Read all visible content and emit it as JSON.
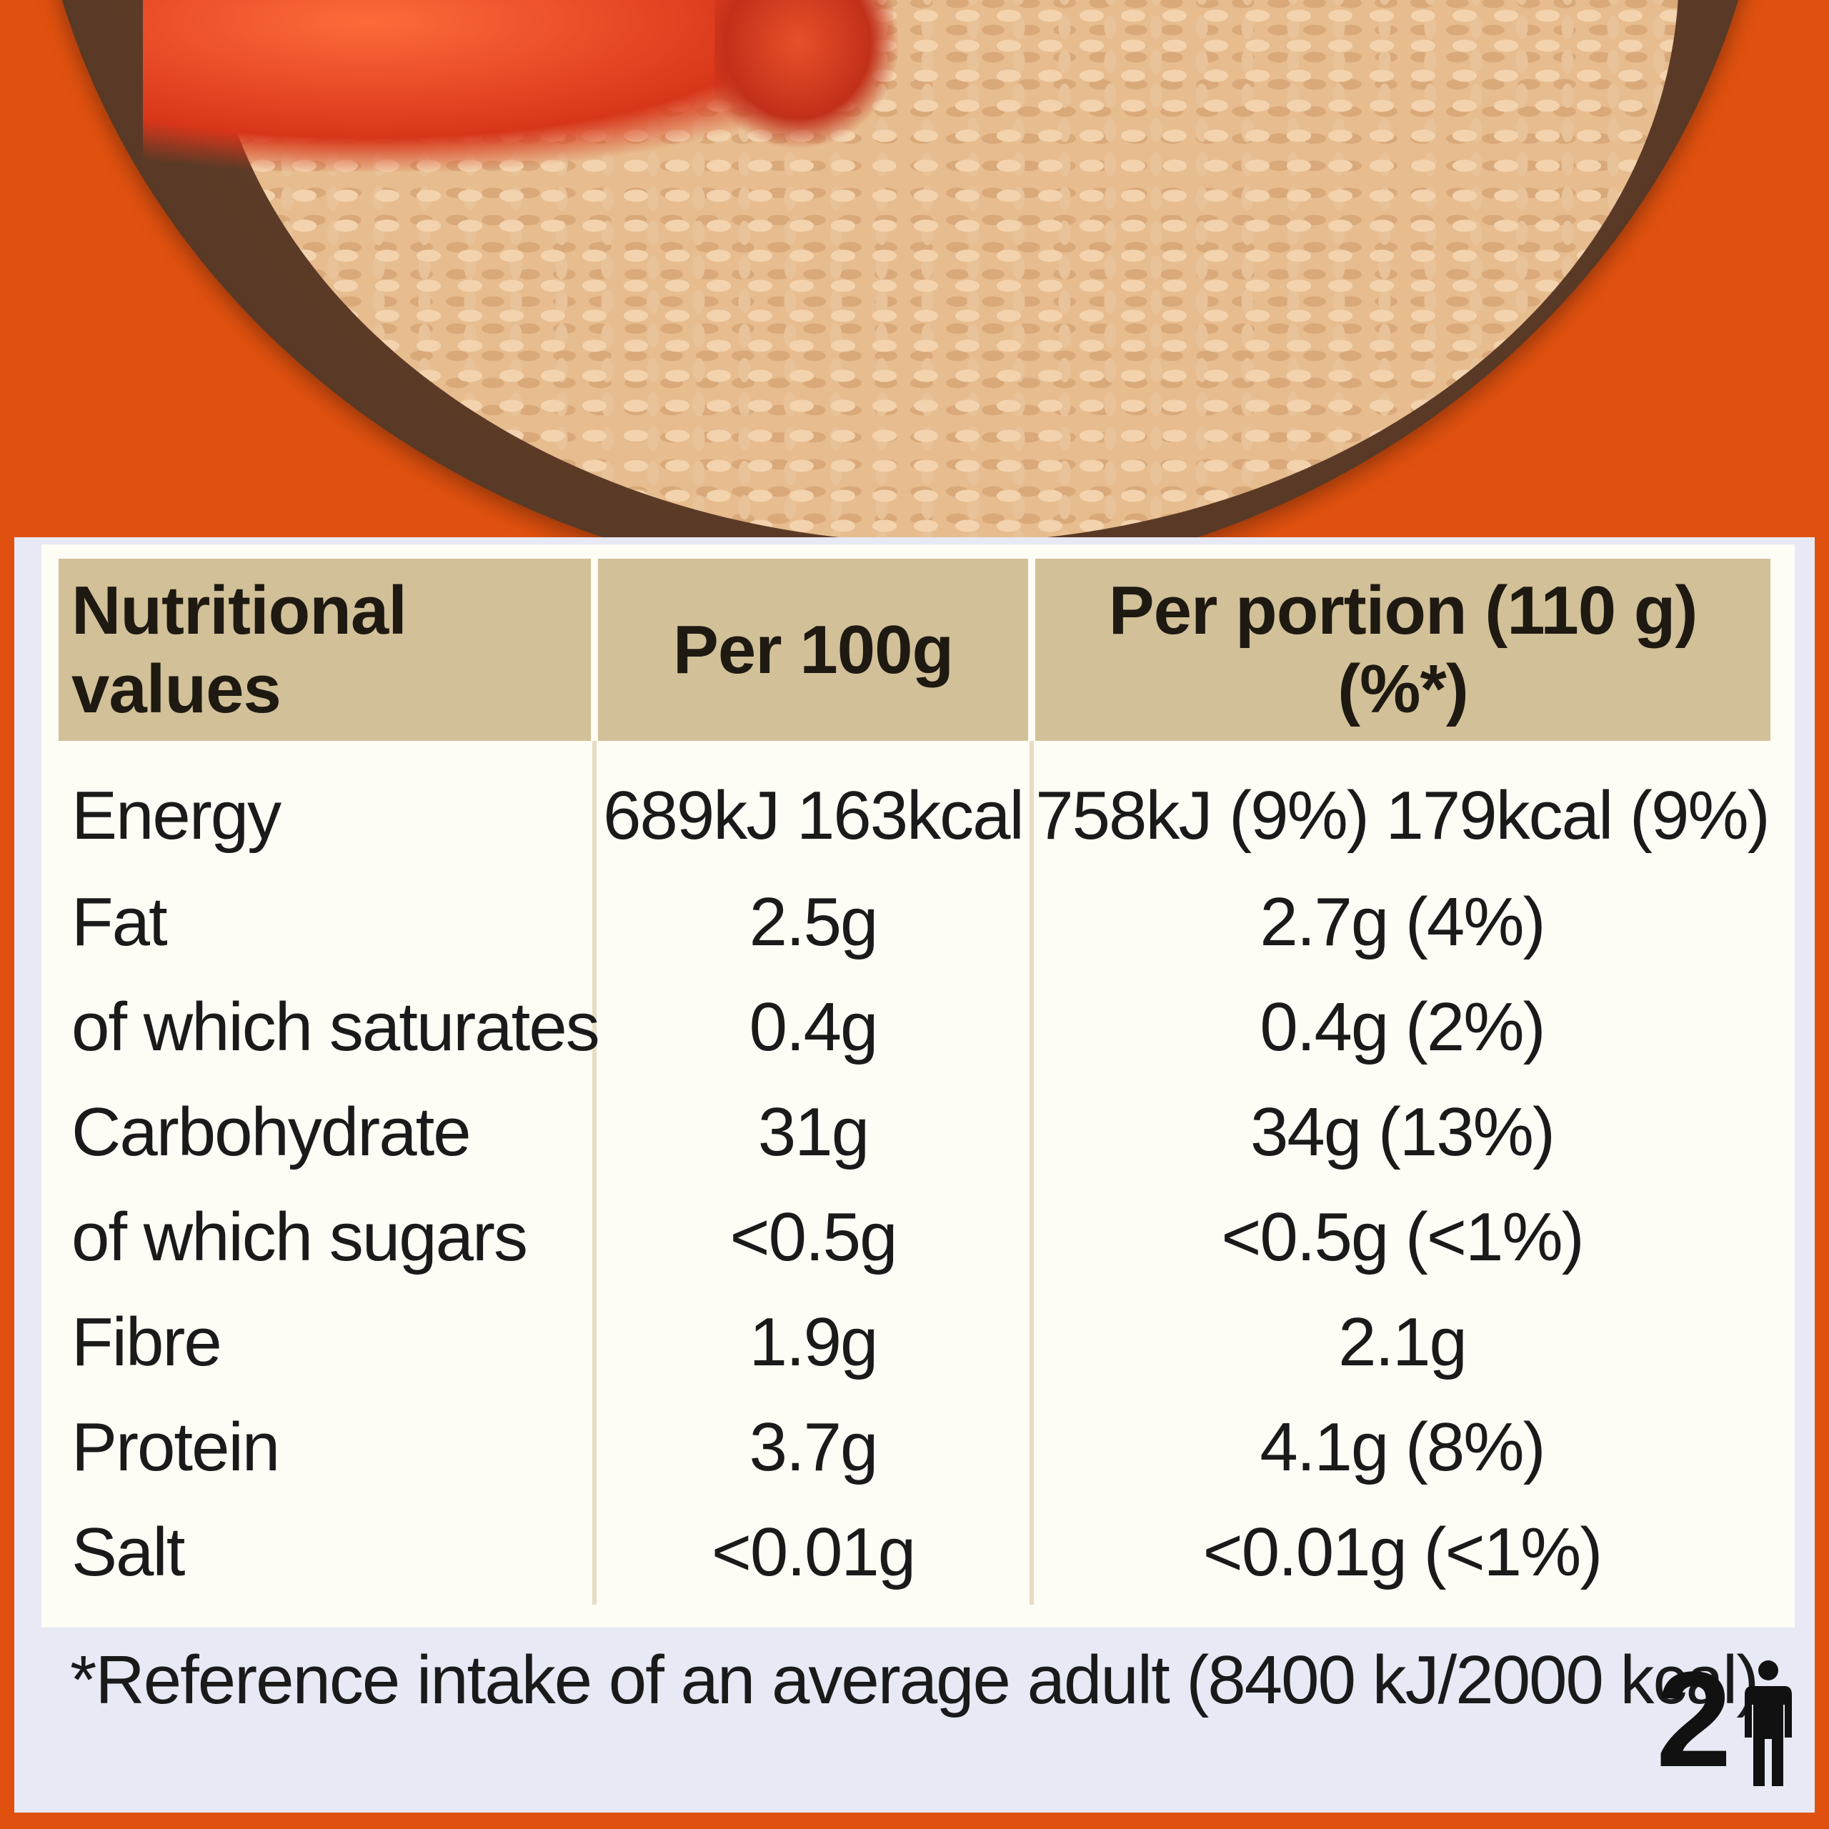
{
  "table": {
    "headers": [
      "Nutritional values",
      "Per 100g",
      "Per portion (110 g) (%*)"
    ],
    "rows": [
      {
        "name": "Energy",
        "per100": "689kJ 163kcal",
        "portion": "758kJ (9%) 179kcal (9%)"
      },
      {
        "name": "Fat",
        "per100": "2.5g",
        "portion": "2.7g (4%)"
      },
      {
        "name": "of which saturates",
        "per100": "0.4g",
        "portion": "0.4g (2%)"
      },
      {
        "name": "Carbohydrate",
        "per100": "31g",
        "portion": "34g (13%)"
      },
      {
        "name": "of which sugars",
        "per100": "<0.5g",
        "portion": "<0.5g (<1%)"
      },
      {
        "name": "Fibre",
        "per100": "1.9g",
        "portion": "2.1g"
      },
      {
        "name": "Protein",
        "per100": "3.7g",
        "portion": "4.1g (8%)"
      },
      {
        "name": "Salt",
        "per100": "<0.01g",
        "portion": "<0.01g (<1%)"
      }
    ]
  },
  "footnote": "*Reference intake of an average adult (8400 kJ/2000 kcal)",
  "servings": {
    "count": "2",
    "icon": "person-icon"
  },
  "colors": {
    "background": "#e0510f",
    "header": "#d2c098",
    "panel": "#e7e9f5",
    "table": "#fdfcf5"
  }
}
